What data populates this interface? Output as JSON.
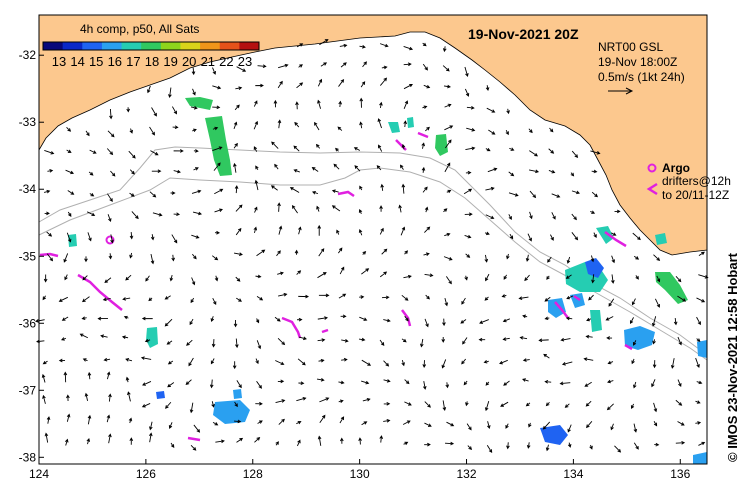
{
  "map": {
    "title": "19-Nov-2021 20Z",
    "colorbar": {
      "title": "4h comp, p50, All Sats",
      "labels": [
        "13",
        "14",
        "15",
        "16",
        "17",
        "18",
        "19",
        "20",
        "21",
        "22",
        "23"
      ],
      "colors": [
        "#08087a",
        "#0a28c8",
        "#1f63f2",
        "#2aa0f0",
        "#25cdb2",
        "#30c860",
        "#8ed51c",
        "#d9d31a",
        "#f0951a",
        "#e5521a",
        "#b41010"
      ]
    },
    "current_key": {
      "model": "NRT00 GSL",
      "time": "19-Nov 18:00Z",
      "scale": "0.5m/s (1kt 24h)"
    },
    "argo_legend": {
      "label": "Argo",
      "drifter_line1": "drifters@12h",
      "drifter_line2": "to 20/11-12Z",
      "argo_color": "#e020e0",
      "drifter_color": "#e020e0"
    },
    "credit": "© IMOS 23-Nov-2021 12:58 Hobart",
    "x_ticks": [
      "124",
      "126",
      "128",
      "130",
      "132",
      "134",
      "136"
    ],
    "y_ticks": [
      "-32",
      "-33",
      "-34",
      "-35",
      "-36",
      "-37",
      "-38"
    ],
    "lon_range": [
      124,
      136.5
    ],
    "lat_range": [
      -38.1,
      -31.4
    ],
    "land_color": "#fcc88e",
    "sea_color": "#ffffff"
  }
}
